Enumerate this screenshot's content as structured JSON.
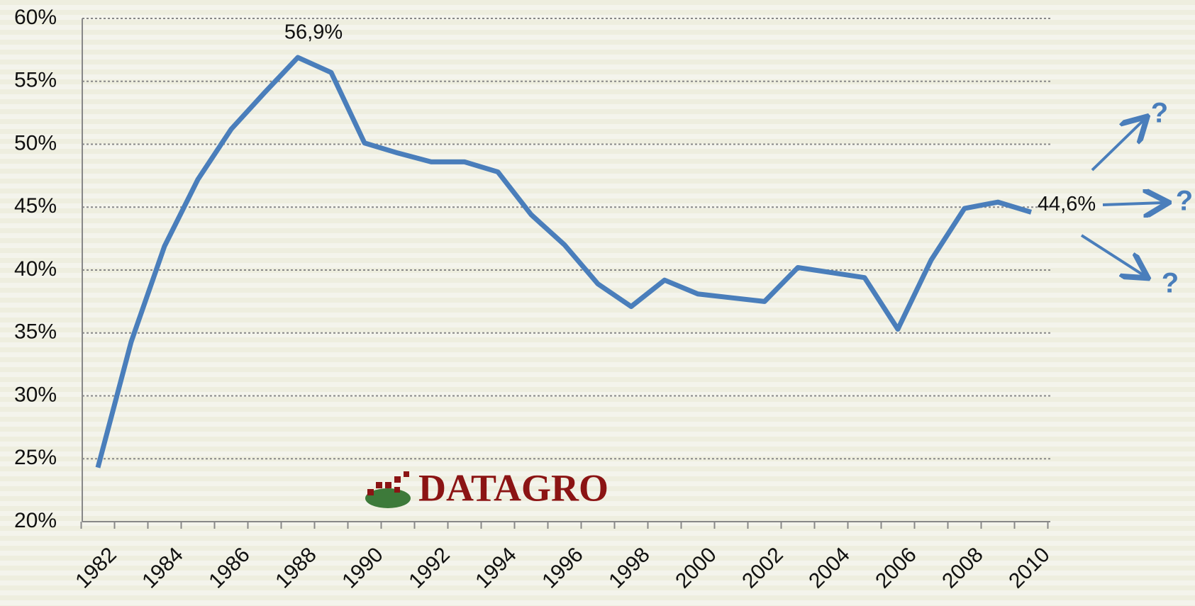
{
  "chart_data": {
    "type": "line",
    "categories": [
      "1982",
      null,
      "1984",
      null,
      "1986",
      null,
      "1988",
      null,
      "1990",
      null,
      "1992",
      null,
      "1994",
      null,
      "1996",
      null,
      "1998",
      null,
      "2000",
      null,
      "2002",
      null,
      "2004",
      null,
      "2006",
      null,
      "2008",
      null,
      "2010"
    ],
    "values": [
      24.3,
      34.3,
      41.9,
      47.2,
      51.2,
      54.1,
      56.9,
      55.7,
      50.1,
      49.3,
      48.6,
      48.6,
      47.8,
      44.4,
      42.0,
      38.9,
      37.1,
      39.2,
      38.1,
      37.8,
      37.5,
      40.2,
      39.8,
      39.4,
      35.3,
      40.8,
      44.9,
      45.4,
      44.6
    ],
    "value_labels": [
      null,
      null,
      null,
      null,
      null,
      null,
      "56,9%",
      null,
      null,
      null,
      null,
      null,
      null,
      null,
      null,
      null,
      null,
      null,
      null,
      null,
      null,
      null,
      null,
      null,
      null,
      null,
      null,
      null,
      "44,6%"
    ],
    "color": "#4a7ebb",
    "ylim": [
      20,
      60
    ],
    "yticks": [
      {
        "value": 20,
        "label": "20%"
      },
      {
        "value": 25,
        "label": "25%"
      },
      {
        "value": 30,
        "label": "30%"
      },
      {
        "value": 35,
        "label": "35%"
      },
      {
        "value": 40,
        "label": "40%"
      },
      {
        "value": 45,
        "label": "45%"
      },
      {
        "value": 50,
        "label": "50%"
      },
      {
        "value": 55,
        "label": "55%"
      },
      {
        "value": 60,
        "label": "60%"
      }
    ],
    "grid": true,
    "annotations": [
      "?",
      "?",
      "?"
    ],
    "logo": "DATAGRO"
  }
}
